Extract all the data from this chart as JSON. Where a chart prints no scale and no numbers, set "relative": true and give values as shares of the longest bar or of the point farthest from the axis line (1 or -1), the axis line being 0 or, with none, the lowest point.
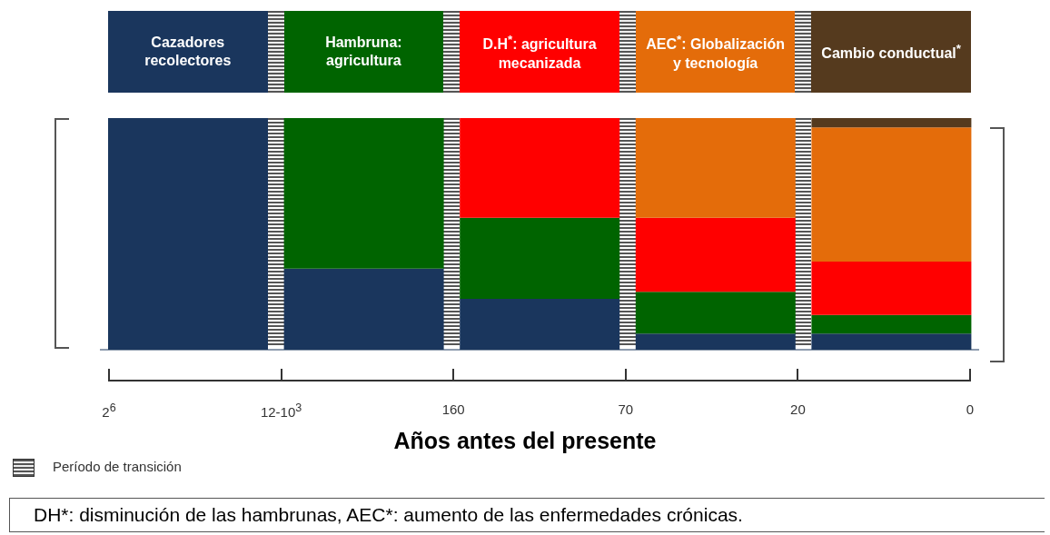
{
  "chart_data": {
    "type": "bar",
    "stacked": true,
    "relative": true,
    "tick_labels": "x",
    "categories": [
      "Cazadores recolectores",
      "Hambruna: agricultura",
      "D.H$^{*}$: agricultura mecanizada",
      "AEC$^{*}$: Globalización y tecnología",
      "Cambio conductual$^{*}$"
    ],
    "series": [
      {
        "color": "#1a365d",
        "values": [
          1,
          0.35,
          0.22,
          0.07,
          0.07
        ]
      },
      {
        "color": "#006400",
        "values": [
          null,
          0.65,
          0.35,
          0.18,
          0.08
        ]
      },
      {
        "color": "#ff0000",
        "values": [
          null,
          null,
          0.43,
          0.32,
          0.23
        ]
      },
      {
        "color": "#e46c0a",
        "values": [
          null,
          null,
          null,
          0.43,
          0.58
        ]
      },
      {
        "color": "#553a1e",
        "values": [
          null,
          null,
          null,
          null,
          0.04
        ]
      }
    ],
    "xlabel": "Años antes del presente",
    "annotations": [
      "2$^{6}$",
      "12-10$^{3}$",
      "160",
      "70",
      "20",
      "0",
      "Período de transición",
      "DH*: disminución de las hambrunas, AEC*: aumento de las enfermedades crónicas."
    ]
  }
}
